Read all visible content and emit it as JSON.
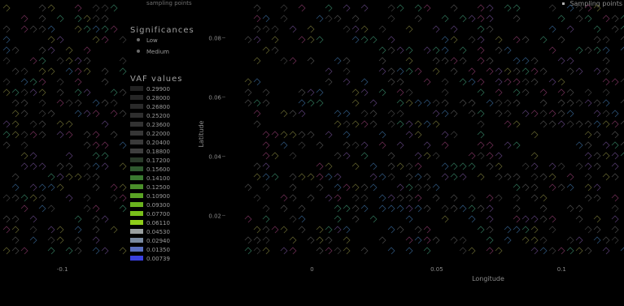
{
  "header": {
    "top_caption": "sampling points",
    "legend_label": "Sampling points"
  },
  "legend": {
    "sig_heading": "Significances",
    "sig_items": [
      "Low",
      "Medium"
    ],
    "vaf_heading": "VAF values",
    "vaf_levels": [
      "0.29900",
      "0.28000",
      "0.26800",
      "0.25200",
      "0.23600",
      "0.22000",
      "0.20400",
      "0.18800",
      "0.17200",
      "0.15600",
      "0.14100",
      "0.12500",
      "0.10900",
      "0.09300",
      "0.07700",
      "0.06110",
      "0.04530",
      "0.02940",
      "0.01350",
      "0.00739"
    ],
    "vaf_colors": [
      "#222222",
      "#262626",
      "#2a2a2a",
      "#2e2e2e",
      "#323232",
      "#363636",
      "#3a3a3a",
      "#3e3e3e",
      "#2a3a2a",
      "#2f5a2f",
      "#3a7a30",
      "#4a8f2a",
      "#5aa324",
      "#6ab21e",
      "#79bf1a",
      "#8fcf1a",
      "#9aa0a0",
      "#7a8aa0",
      "#5a6fc0",
      "#3a40e0"
    ]
  },
  "chart_data": {
    "type": "scatter",
    "title": "",
    "xlabel": "Longitude",
    "ylabel": "Latitude",
    "x_ticks": [
      "-0.1",
      "0",
      "0.05",
      "0.1"
    ],
    "y_ticks": [
      "0.08",
      "0.06",
      "0.04",
      "0.02"
    ],
    "xlim": [
      -0.125,
      0.125
    ],
    "ylim": [
      0.005,
      0.09
    ],
    "grid": false,
    "legend_placement": "left"
  }
}
